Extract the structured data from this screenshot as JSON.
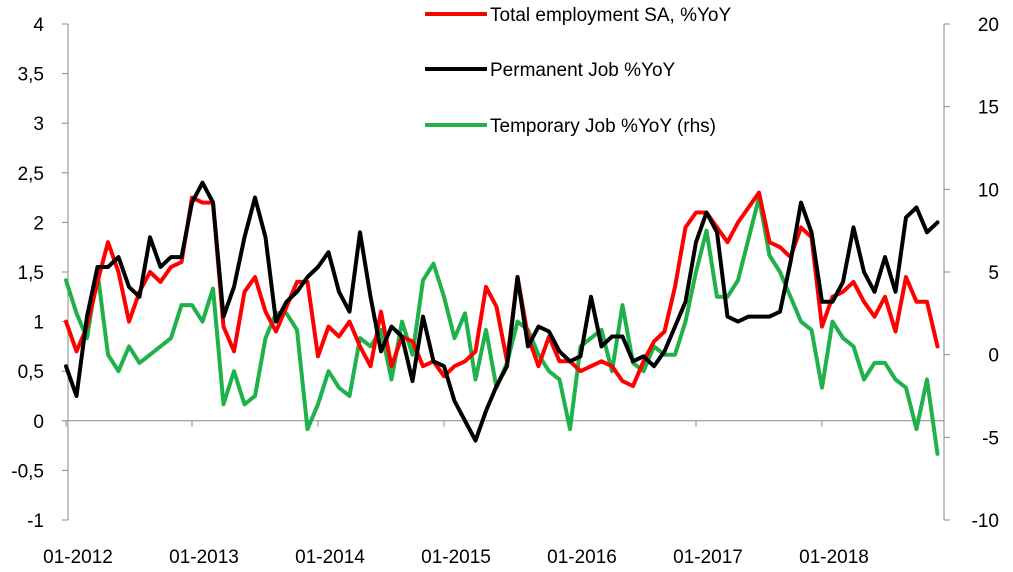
{
  "chart_data": {
    "type": "line",
    "legend": {
      "placement": "top-center",
      "entries": [
        {
          "label": "Total employment SA, %YoY",
          "color": "#ff0000"
        },
        {
          "label": "Permanent Job %YoY",
          "color": "#000000"
        },
        {
          "label": "Temporary Job %YoY (rhs)",
          "color": "#1fb14a"
        }
      ]
    },
    "x_tick_labels": [
      "01-2012",
      "01-2013",
      "01-2014",
      "01-2015",
      "01-2016",
      "01-2017",
      "01-2018"
    ],
    "y_left": {
      "range": [
        -1,
        4
      ],
      "tick_labels": [
        "4",
        "3,5",
        "3",
        "2,5",
        "2",
        "1,5",
        "1",
        "0,5",
        "0",
        "-0,5",
        "-1"
      ]
    },
    "y_right": {
      "range": [
        -10,
        20
      ],
      "tick_labels": [
        "20",
        "15",
        "10",
        "5",
        "0",
        "-5",
        "-10"
      ]
    },
    "grid": false,
    "series": [
      {
        "name": "Total employment SA, %YoY",
        "axis": "left",
        "color": "#ff0000",
        "start": "2012-01",
        "values": [
          1.0,
          0.7,
          0.95,
          1.4,
          1.8,
          1.5,
          1.0,
          1.3,
          1.5,
          1.4,
          1.55,
          1.6,
          2.25,
          2.2,
          2.2,
          0.95,
          0.7,
          1.3,
          1.45,
          1.1,
          0.9,
          1.15,
          1.4,
          1.4,
          0.65,
          0.95,
          0.85,
          1.0,
          0.75,
          0.55,
          1.1,
          0.55,
          0.85,
          0.8,
          0.55,
          0.6,
          0.45,
          0.55,
          0.6,
          0.7,
          1.35,
          1.15,
          0.6,
          1.45,
          0.85,
          0.55,
          0.85,
          0.6,
          0.6,
          0.5,
          0.55,
          0.6,
          0.55,
          0.4,
          0.35,
          0.6,
          0.8,
          0.9,
          1.35,
          1.95,
          2.1,
          2.1,
          1.95,
          1.8,
          2.0,
          2.15,
          2.3,
          1.8,
          1.75,
          1.65,
          1.95,
          1.85,
          0.95,
          1.25,
          1.3,
          1.4,
          1.2,
          1.05,
          1.25,
          0.9,
          1.45,
          1.2,
          1.2,
          0.75
        ]
      },
      {
        "name": "Permanent Job %YoY",
        "axis": "left",
        "color": "#000000",
        "start": "2012-01",
        "values": [
          0.55,
          0.25,
          1.05,
          1.55,
          1.55,
          1.65,
          1.35,
          1.25,
          1.85,
          1.55,
          1.65,
          1.65,
          2.2,
          2.4,
          2.2,
          1.05,
          1.35,
          1.85,
          2.25,
          1.85,
          1.0,
          1.2,
          1.3,
          1.45,
          1.55,
          1.7,
          1.3,
          1.1,
          1.9,
          1.25,
          0.7,
          0.95,
          0.85,
          0.4,
          1.05,
          0.6,
          0.55,
          0.2,
          0.0,
          -0.2,
          0.1,
          0.35,
          0.55,
          1.45,
          0.75,
          0.95,
          0.9,
          0.7,
          0.6,
          0.65,
          1.25,
          0.75,
          0.85,
          0.85,
          0.6,
          0.65,
          0.55,
          0.7,
          0.95,
          1.2,
          1.8,
          2.1,
          1.9,
          1.05,
          1.0,
          1.05,
          1.05,
          1.05,
          1.1,
          1.6,
          2.2,
          1.9,
          1.2,
          1.2,
          1.4,
          1.95,
          1.5,
          1.3,
          1.65,
          1.3,
          2.05,
          2.15,
          1.9,
          2.0
        ]
      },
      {
        "name": "Temporary Job %YoY (rhs)",
        "axis": "right",
        "color": "#1fb14a",
        "start": "2012-01",
        "values": [
          4.5,
          2.5,
          1.0,
          5.0,
          0.0,
          -1.0,
          0.5,
          -0.5,
          0.0,
          0.5,
          1.0,
          3.0,
          3.0,
          2.0,
          4.0,
          -3.0,
          -1.0,
          -3.0,
          -2.5,
          1.0,
          2.5,
          2.5,
          1.5,
          -4.5,
          -3.0,
          -1.0,
          -2.0,
          -2.5,
          1.0,
          0.5,
          1.5,
          -1.5,
          2.0,
          0.0,
          4.5,
          5.5,
          3.5,
          1.0,
          2.5,
          -1.5,
          1.5,
          -2.0,
          -0.5,
          2.0,
          1.5,
          0.0,
          -1.0,
          -1.5,
          -4.5,
          0.5,
          1.0,
          1.5,
          -1.0,
          3.0,
          -0.5,
          -1.0,
          0.5,
          0.0,
          0.0,
          2.0,
          5.0,
          7.5,
          3.5,
          3.5,
          4.5,
          7.0,
          9.5,
          6.0,
          5.0,
          3.5,
          2.0,
          1.5,
          -2.0,
          2.0,
          1.0,
          0.5,
          -1.5,
          -0.5,
          -0.5,
          -1.5,
          -2.0,
          -4.5,
          -1.5,
          -6.0
        ]
      }
    ]
  }
}
